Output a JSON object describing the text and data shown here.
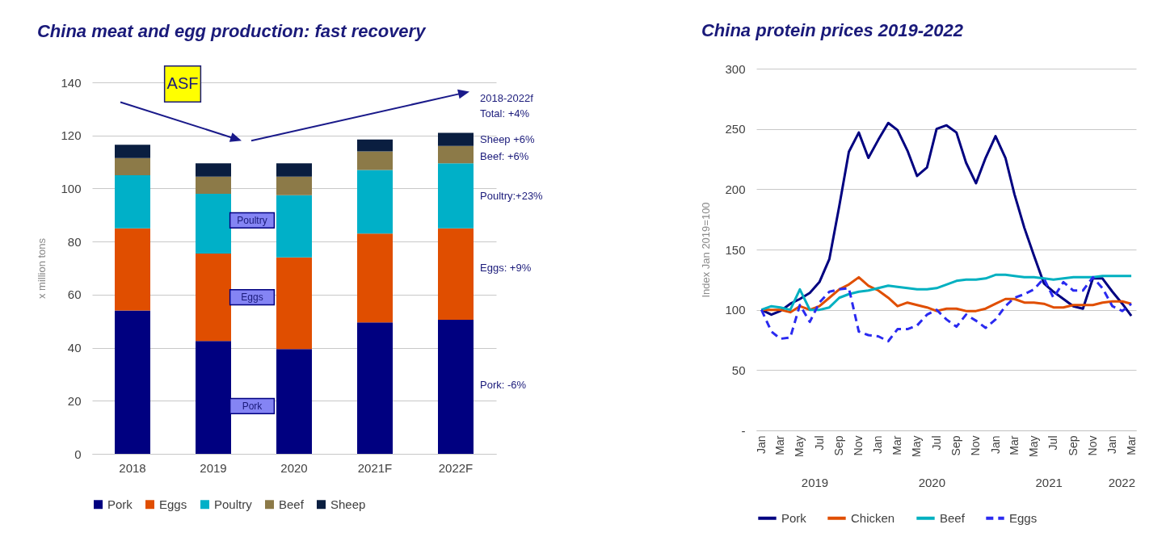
{
  "chart_data": [
    {
      "type": "bar",
      "title": "China meat and egg production: fast recovery",
      "ylabel": "x million tons",
      "categories": [
        "2018",
        "2019",
        "2020",
        "2021F",
        "2022F"
      ],
      "stacked": true,
      "ylim": [
        0,
        140
      ],
      "yticks": [
        0,
        20,
        40,
        60,
        80,
        100,
        120,
        140
      ],
      "grid": "y",
      "legend": "bottom",
      "series": [
        {
          "name": "Pork",
          "color": "#000080",
          "values": [
            54,
            42.5,
            39.5,
            49.5,
            50.5
          ]
        },
        {
          "name": "Eggs",
          "color": "#e04e00",
          "values": [
            31,
            33,
            34.5,
            33.5,
            34.5
          ]
        },
        {
          "name": "Poultry",
          "color": "#00b0c8",
          "values": [
            20,
            22.5,
            23.5,
            24,
            24.5
          ]
        },
        {
          "name": "Beef",
          "color": "#8c7a48",
          "values": [
            6.5,
            6.5,
            7,
            7,
            6.5
          ]
        },
        {
          "name": "Sheep",
          "color": "#0a1e40",
          "values": [
            5,
            5,
            5,
            4.5,
            5
          ]
        }
      ],
      "annotations": [
        "ASF",
        "2018-2022f",
        "Total: +4%",
        "Sheep +6%",
        "Beef: +6%",
        "Poultry:+23%",
        "Eggs: +9%",
        "Pork: -6%",
        "Poultry",
        "Eggs",
        "Pork"
      ]
    },
    {
      "type": "line",
      "title": "China protein prices 2019-2022",
      "ylabel": "Index Jan 2019=100",
      "ylim": [
        0,
        300
      ],
      "yticks": [
        {
          "value": 0,
          "label": "-"
        },
        50,
        100,
        150,
        200,
        250,
        300
      ],
      "grid": "y",
      "legend": "bottom",
      "marker": "none",
      "xlim": [
        "2018-12-16",
        "2022-03-16"
      ],
      "xticks": [
        {
          "value": "2019-01",
          "label": "Jan"
        },
        {
          "value": "2019-03",
          "label": "Mar"
        },
        {
          "value": "2019-05",
          "label": "May"
        },
        {
          "value": "2019-07",
          "label": "Jul"
        },
        {
          "value": "2019-09",
          "label": "Sep"
        },
        {
          "value": "2019-11",
          "label": "Nov"
        },
        {
          "value": "2020-01",
          "label": "Jan"
        },
        {
          "value": "2020-03",
          "label": "Mar"
        },
        {
          "value": "2020-05",
          "label": "May"
        },
        {
          "value": "2020-07",
          "label": "Jul"
        },
        {
          "value": "2020-09",
          "label": "Sep"
        },
        {
          "value": "2020-11",
          "label": "Nov"
        },
        {
          "value": "2021-01",
          "label": "Jan"
        },
        {
          "value": "2021-03",
          "label": "Mar"
        },
        {
          "value": "2021-05",
          "label": "May"
        },
        {
          "value": "2021-07",
          "label": "Jul"
        },
        {
          "value": "2021-09",
          "label": "Sep"
        },
        {
          "value": "2021-11",
          "label": "Nov"
        },
        {
          "value": "2022-01",
          "label": "Jan"
        },
        {
          "value": "2022-03",
          "label": "Mar"
        }
      ],
      "x": [
        "2019-01",
        "2019-02",
        "2019-03",
        "2019-04",
        "2019-05",
        "2019-06",
        "2019-07",
        "2019-08",
        "2019-09",
        "2019-10",
        "2019-11",
        "2019-12",
        "2020-01",
        "2020-02",
        "2020-03",
        "2020-04",
        "2020-05",
        "2020-06",
        "2020-07",
        "2020-08",
        "2020-09",
        "2020-10",
        "2020-11",
        "2020-12",
        "2021-01",
        "2021-02",
        "2021-03",
        "2021-04",
        "2021-05",
        "2021-06",
        "2021-07",
        "2021-08",
        "2021-09",
        "2021-10",
        "2021-11",
        "2021-12",
        "2022-01",
        "2022-02",
        "2022-03"
      ],
      "series": [
        {
          "name": "Pork",
          "color": "#000080",
          "values": [
            100,
            96,
            99,
            105,
            109,
            114,
            123,
            142,
            186,
            231,
            247,
            226,
            241,
            255,
            249,
            232,
            211,
            218,
            250,
            253,
            247,
            222,
            205,
            226,
            244,
            226,
            196,
            168,
            145,
            122,
            115,
            109,
            103,
            101,
            126,
            126,
            115,
            105,
            95
          ]
        },
        {
          "name": "Chicken",
          "color": "#e04e00",
          "values": [
            100,
            100,
            100,
            98,
            103,
            100,
            103,
            110,
            117,
            121,
            127,
            120,
            116,
            110,
            103,
            106,
            104,
            102,
            99,
            101,
            101,
            99,
            99,
            101,
            105,
            109,
            109,
            106,
            106,
            105,
            102,
            102,
            104,
            104,
            104,
            106,
            107,
            107,
            105
          ]
        },
        {
          "name": "Beef",
          "color": "#00b0c0",
          "values": [
            100,
            103,
            102,
            100,
            117,
            100,
            100,
            102,
            110,
            113,
            115,
            116,
            118,
            120,
            119,
            118,
            117,
            117,
            118,
            121,
            124,
            125,
            125,
            126,
            129,
            129,
            128,
            127,
            127,
            126,
            125,
            126,
            127,
            127,
            127,
            128,
            128,
            128,
            128
          ]
        },
        {
          "name": "Eggs",
          "color": "#2a2af0",
          "line_style": "dashed",
          "values": [
            100,
            82,
            76,
            77,
            104,
            90,
            106,
            115,
            117,
            118,
            82,
            79,
            78,
            74,
            84,
            84,
            87,
            96,
            100,
            92,
            86,
            96,
            91,
            85,
            92,
            103,
            110,
            113,
            117,
            126,
            110,
            123,
            116,
            116,
            127,
            118,
            103,
            99,
            105
          ]
        }
      ],
      "annotations": [
        "2019",
        "2020",
        "2021",
        "2022"
      ]
    }
  ]
}
